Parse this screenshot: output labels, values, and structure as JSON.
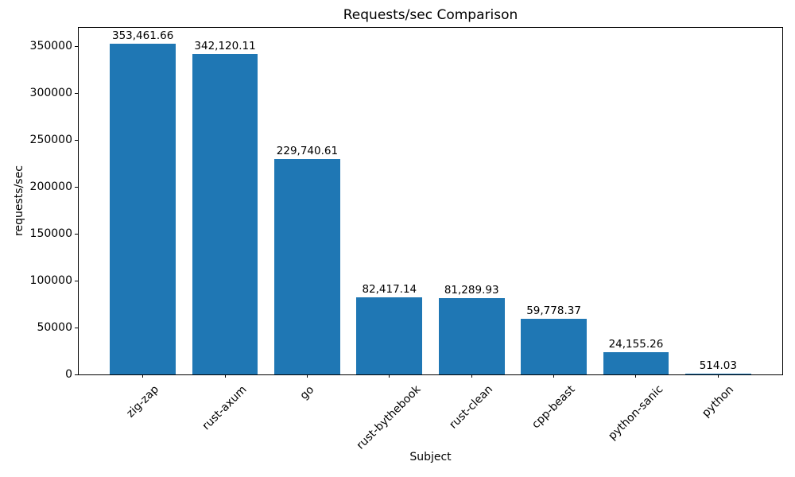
{
  "chart_data": {
    "type": "bar",
    "title": "Requests/sec Comparison",
    "xlabel": "Subject",
    "ylabel": "requests/sec",
    "categories": [
      "zig-zap",
      "rust-axum",
      "go",
      "rust-bythebook",
      "rust-clean",
      "cpp-beast",
      "python-sanic",
      "python"
    ],
    "values": [
      353461.66,
      342120.11,
      229740.61,
      82417.14,
      81289.93,
      59778.37,
      24155.26,
      514.03
    ],
    "value_labels": [
      "353,461.66",
      "342,120.11",
      "229,740.61",
      "82,417.14",
      "81,289.93",
      "59,778.37",
      "24,155.26",
      "514.03"
    ],
    "yticks": [
      0,
      50000,
      100000,
      150000,
      200000,
      250000,
      300000,
      350000
    ],
    "ytick_labels": [
      "0",
      "50000",
      "100000",
      "150000",
      "200000",
      "250000",
      "300000",
      "350000"
    ],
    "ylim": [
      0,
      371135
    ],
    "xlim": [
      -0.79,
      7.79
    ],
    "bar_width_fraction": 0.8,
    "bar_color": "#1f77b4",
    "grid": false,
    "x_tick_label_rotation_deg": 45
  }
}
